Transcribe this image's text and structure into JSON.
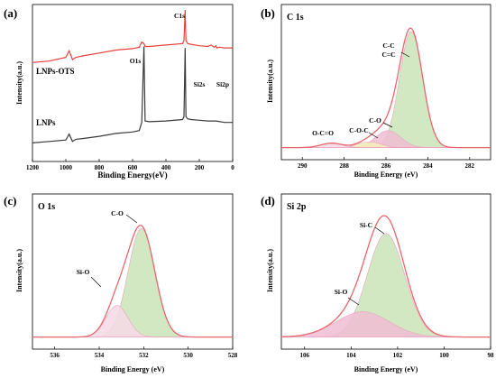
{
  "colors": {
    "red": "#e8413b",
    "black": "#3a3a3a",
    "envelope": "#e8666b",
    "green_fill": "#c9e4b9",
    "pink_fill": "#f1bdd3",
    "yellow_fill": "#f3eeba",
    "light_pink_fill": "#f6d9e6"
  },
  "chart_data": [
    {
      "panel": "(a)",
      "type": "line",
      "xlabel": "Binding Energy(eV)",
      "ylabel": "Intensity(a.u.)",
      "xlim": [
        1200,
        0
      ],
      "ylim": [
        0,
        10
      ],
      "xticks": [
        "1200",
        "1000",
        "800",
        "600",
        "400",
        "200",
        "0"
      ],
      "series": [
        {
          "name": "LNPs-OTS",
          "color": "#e8413b",
          "x": [
            1200,
            1100,
            1000,
            980,
            960,
            940,
            900,
            800,
            700,
            600,
            560,
            545,
            532,
            525,
            500,
            400,
            300,
            292,
            285,
            280,
            270,
            250,
            200,
            150,
            130,
            110,
            100,
            95,
            80,
            50,
            0
          ],
          "y": [
            6.4,
            6.5,
            6.75,
            7.2,
            6.6,
            6.75,
            6.85,
            7.05,
            7.25,
            7.35,
            7.45,
            7.8,
            7.7,
            7.5,
            7.5,
            7.6,
            7.7,
            7.9,
            10.0,
            7.9,
            7.7,
            7.65,
            7.55,
            7.5,
            7.6,
            7.45,
            7.55,
            7.4,
            7.45,
            7.4,
            7.4
          ]
        },
        {
          "name": "LNPs",
          "color": "#3a3a3a",
          "x": [
            1200,
            1100,
            1000,
            980,
            960,
            940,
            900,
            800,
            700,
            600,
            560,
            545,
            532,
            525,
            500,
            400,
            300,
            292,
            285,
            280,
            270,
            250,
            200,
            150,
            100,
            50,
            0
          ],
          "y": [
            0.9,
            1.0,
            1.1,
            1.5,
            1.0,
            1.15,
            1.2,
            1.35,
            1.55,
            1.65,
            1.75,
            2.3,
            7.5,
            2.4,
            2.35,
            2.4,
            2.5,
            2.7,
            7.4,
            2.7,
            2.55,
            2.5,
            2.45,
            2.4,
            2.4,
            2.3,
            2.3
          ]
        }
      ],
      "annotations": [
        "C1s",
        "O1s",
        "Si2s",
        "Si2p",
        "LNPs-OTS",
        "LNPs"
      ]
    },
    {
      "panel": "(b)",
      "type": "area",
      "title": "C 1s",
      "xlabel": "Binding Energy (eV)",
      "ylabel": "Intensity(a.u.)",
      "xlim": [
        291,
        281
      ],
      "ylim": [
        0,
        10
      ],
      "xticks": [
        "290",
        "288",
        "286",
        "284",
        "282"
      ],
      "components": [
        {
          "name": "C-C C=C",
          "center": 284.8,
          "height": 9.2,
          "width": 0.55,
          "fill": "#c9e4b9"
        },
        {
          "name": "C-O",
          "center": 285.9,
          "height": 1.35,
          "width": 0.6,
          "fill": "#f1bdd3"
        },
        {
          "name": "C-O-C",
          "center": 286.8,
          "height": 0.45,
          "width": 0.55,
          "fill": "#f3eeba"
        },
        {
          "name": "O-C=O",
          "center": 288.6,
          "height": 0.35,
          "width": 0.5,
          "fill": "#f6d9e6"
        }
      ],
      "baseline": 0.1
    },
    {
      "panel": "(c)",
      "type": "area",
      "title": "O 1s",
      "xlabel": "Binding Energy (eV)",
      "ylabel": "Intensity(a.u.)",
      "xlim": [
        537,
        528
      ],
      "ylim": [
        0,
        10
      ],
      "xticks": [
        "536",
        "534",
        "532",
        "530",
        "528"
      ],
      "components": [
        {
          "name": "C-O",
          "center": 532.1,
          "height": 8.6,
          "width": 0.6,
          "fill": "#c9e4b9"
        },
        {
          "name": "Si-O",
          "center": 533.2,
          "height": 2.5,
          "width": 0.5,
          "fill": "#f6d9e6"
        }
      ],
      "baseline": 0.1
    },
    {
      "panel": "(d)",
      "type": "area",
      "title": "Si 2p",
      "xlabel": "Binding Energy (eV)",
      "ylabel": "Intensity(a.u.)",
      "xlim": [
        107,
        98
      ],
      "ylim": [
        0,
        10
      ],
      "xticks": [
        "106",
        "104",
        "102",
        "100",
        "98"
      ],
      "components": [
        {
          "name": "Si-C",
          "center": 102.5,
          "height": 8.2,
          "width": 0.8,
          "fill": "#c9e4b9"
        },
        {
          "name": "Si-O",
          "center": 103.5,
          "height": 2.0,
          "width": 1.15,
          "fill": "#f1bdd3"
        }
      ],
      "baseline": 0.1
    }
  ],
  "labels": {
    "a": {
      "panel": "(a)",
      "c1s": "C1s",
      "o1s": "O1s",
      "si2s": "Si2s",
      "si2p": "Si2p",
      "ots": "LNPs-OTS",
      "lnps": "LNPs"
    },
    "b": {
      "panel": "(b)",
      "title": "C 1s",
      "cc": "C-C",
      "cc2": "C=C",
      "co": "C-O",
      "coc": "C-O-C",
      "oco": "O-C=O"
    },
    "c": {
      "panel": "(c)",
      "title": "O 1s",
      "co": "C-O",
      "sio": "Si-O"
    },
    "d": {
      "panel": "(d)",
      "title": "Si 2p",
      "sic": "Si-C",
      "sio": "Si-O"
    }
  }
}
